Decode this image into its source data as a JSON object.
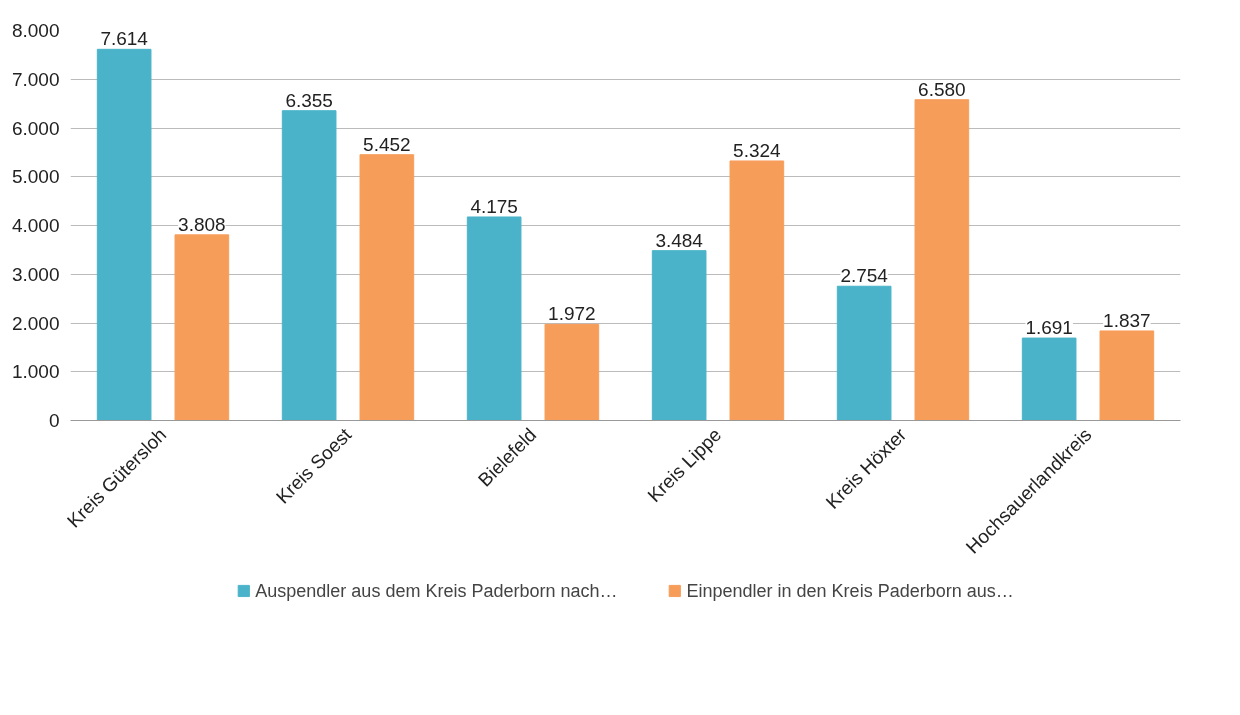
{
  "chart_data": {
    "type": "bar",
    "categories": [
      "Kreis Gütersloh",
      "Kreis Soest",
      "Bielefeld",
      "Kreis Lippe",
      "Kreis Höxter",
      "Hochsauerlandkreis"
    ],
    "series": [
      {
        "name": "Auspendler aus dem Kreis Paderborn nach…",
        "color": "#4bb3c9",
        "values": [
          7614,
          6355,
          4175,
          3484,
          2754,
          1691
        ],
        "value_labels": [
          "7.614",
          "6.355",
          "4.175",
          "3.484",
          "2.754",
          "1.691"
        ]
      },
      {
        "name": "Einpendler in den Kreis Paderborn aus…",
        "color": "#f79d5a",
        "values": [
          3808,
          5452,
          1972,
          5324,
          6580,
          1837
        ],
        "value_labels": [
          "3.808",
          "5.452",
          "1.972",
          "5.324",
          "6.580",
          "1.837"
        ]
      }
    ],
    "ylim": [
      0,
      8000
    ],
    "yticks": [
      {
        "value": 0,
        "label": "0"
      },
      {
        "value": 1000,
        "label": "1.000"
      },
      {
        "value": 2000,
        "label": "2.000"
      },
      {
        "value": 3000,
        "label": "3.000"
      },
      {
        "value": 4000,
        "label": "4.000"
      },
      {
        "value": 5000,
        "label": "5.000"
      },
      {
        "value": 6000,
        "label": "6.000"
      },
      {
        "value": 7000,
        "label": "7.000"
      },
      {
        "value": 8000,
        "label": "8.000"
      }
    ],
    "grid": "y",
    "legend": "bottom"
  }
}
